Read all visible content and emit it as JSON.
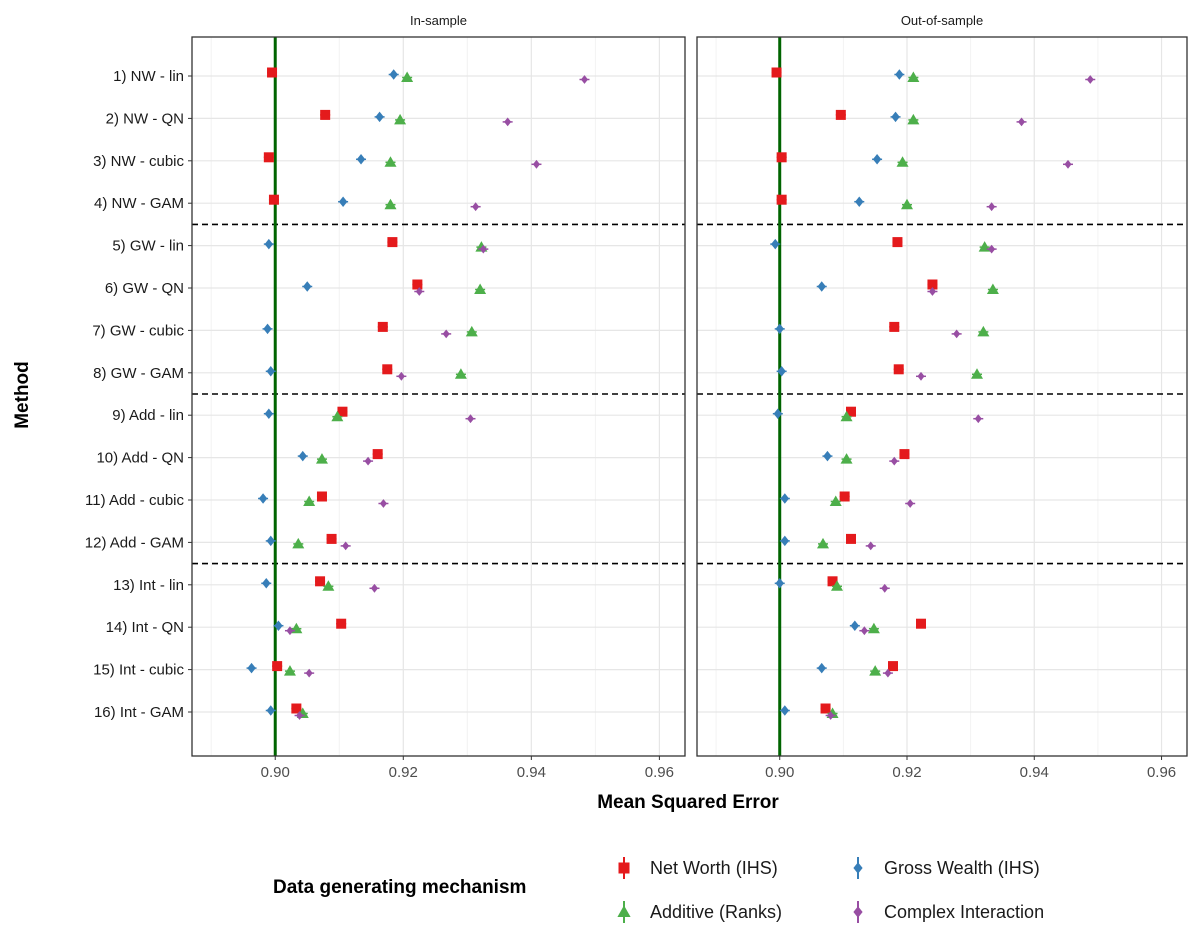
{
  "chart_data": {
    "type": "scatter",
    "panels": [
      "In-sample",
      "Out-of-sample"
    ],
    "xlabel": "Mean Squared Error",
    "ylabel": "Method",
    "xlim": [
      0.887,
      0.964
    ],
    "xticks": [
      0.9,
      0.92,
      0.94,
      0.96
    ],
    "xtick_labels": [
      "0.90",
      "0.92",
      "0.94",
      "0.96"
    ],
    "reference_line": 0.9,
    "reference_line_color": "#006400",
    "group_separators_after": [
      4,
      8,
      12
    ],
    "methods": [
      "1) NW - lin",
      "2) NW - QN",
      "3) NW - cubic",
      "4) NW - GAM",
      "5) GW - lin",
      "6) GW - QN",
      "7) GW - cubic",
      "8) GW - GAM",
      "9) Add - lin",
      "10) Add - QN",
      "11) Add - cubic",
      "12) Add - GAM",
      "13) Int - lin",
      "14) Int - QN",
      "15) Int - cubic",
      "16) Int - GAM"
    ],
    "legend_title": "Data generating mechanism",
    "legend_position": "bottom",
    "grid": true,
    "series": [
      {
        "name": "Net Worth (IHS)",
        "color": "#e41a1c",
        "marker": "square",
        "in_sample": [
          0.8995,
          0.9078,
          0.899,
          0.8998,
          0.9183,
          0.9222,
          0.9168,
          0.9175,
          0.9105,
          0.916,
          0.9073,
          0.9088,
          0.907,
          0.9103,
          0.9003,
          0.9033
        ],
        "out_of_sample": [
          0.8995,
          0.9096,
          0.9003,
          0.9003,
          0.9185,
          0.924,
          0.918,
          0.9187,
          0.9112,
          0.9196,
          0.9102,
          0.9112,
          0.9083,
          0.9222,
          0.9178,
          0.9072
        ]
      },
      {
        "name": "Gross Wealth (IHS)",
        "color": "#377eb8",
        "marker": "diamond",
        "in_sample": [
          0.9185,
          0.9163,
          0.9134,
          0.9106,
          0.899,
          0.905,
          0.8988,
          0.8993,
          0.899,
          0.9043,
          0.8981,
          0.8993,
          0.8986,
          0.9005,
          0.8963,
          0.8993
        ],
        "out_of_sample": [
          0.9188,
          0.9182,
          0.9153,
          0.9125,
          0.8993,
          0.9066,
          0.9,
          0.9003,
          0.8997,
          0.9075,
          0.9008,
          0.9008,
          0.9,
          0.9118,
          0.9066,
          0.9008
        ]
      },
      {
        "name": "Additive (Ranks)",
        "color": "#4daf4a",
        "marker": "triangle",
        "in_sample": [
          0.9206,
          0.9195,
          0.918,
          0.918,
          0.9322,
          0.932,
          0.9307,
          0.929,
          0.9097,
          0.9073,
          0.9053,
          0.9036,
          0.9083,
          0.9033,
          0.9023,
          0.9043
        ],
        "out_of_sample": [
          0.921,
          0.921,
          0.9193,
          0.92,
          0.9322,
          0.9335,
          0.932,
          0.931,
          0.9105,
          0.9105,
          0.9088,
          0.9068,
          0.909,
          0.9148,
          0.915,
          0.9083
        ]
      },
      {
        "name": "Complex Interaction",
        "color": "#984ea3",
        "marker": "diamond",
        "in_sample": [
          0.9483,
          0.9363,
          0.9408,
          0.9313,
          0.9325,
          0.9225,
          0.9267,
          0.9197,
          0.9305,
          0.9145,
          0.9169,
          0.911,
          0.9155,
          0.9023,
          0.9053,
          0.9038
        ],
        "out_of_sample": [
          0.9488,
          0.938,
          0.9453,
          0.9333,
          0.9333,
          0.924,
          0.9278,
          0.9222,
          0.9312,
          0.918,
          0.9205,
          0.9143,
          0.9165,
          0.9133,
          0.917,
          0.908
        ]
      }
    ]
  }
}
